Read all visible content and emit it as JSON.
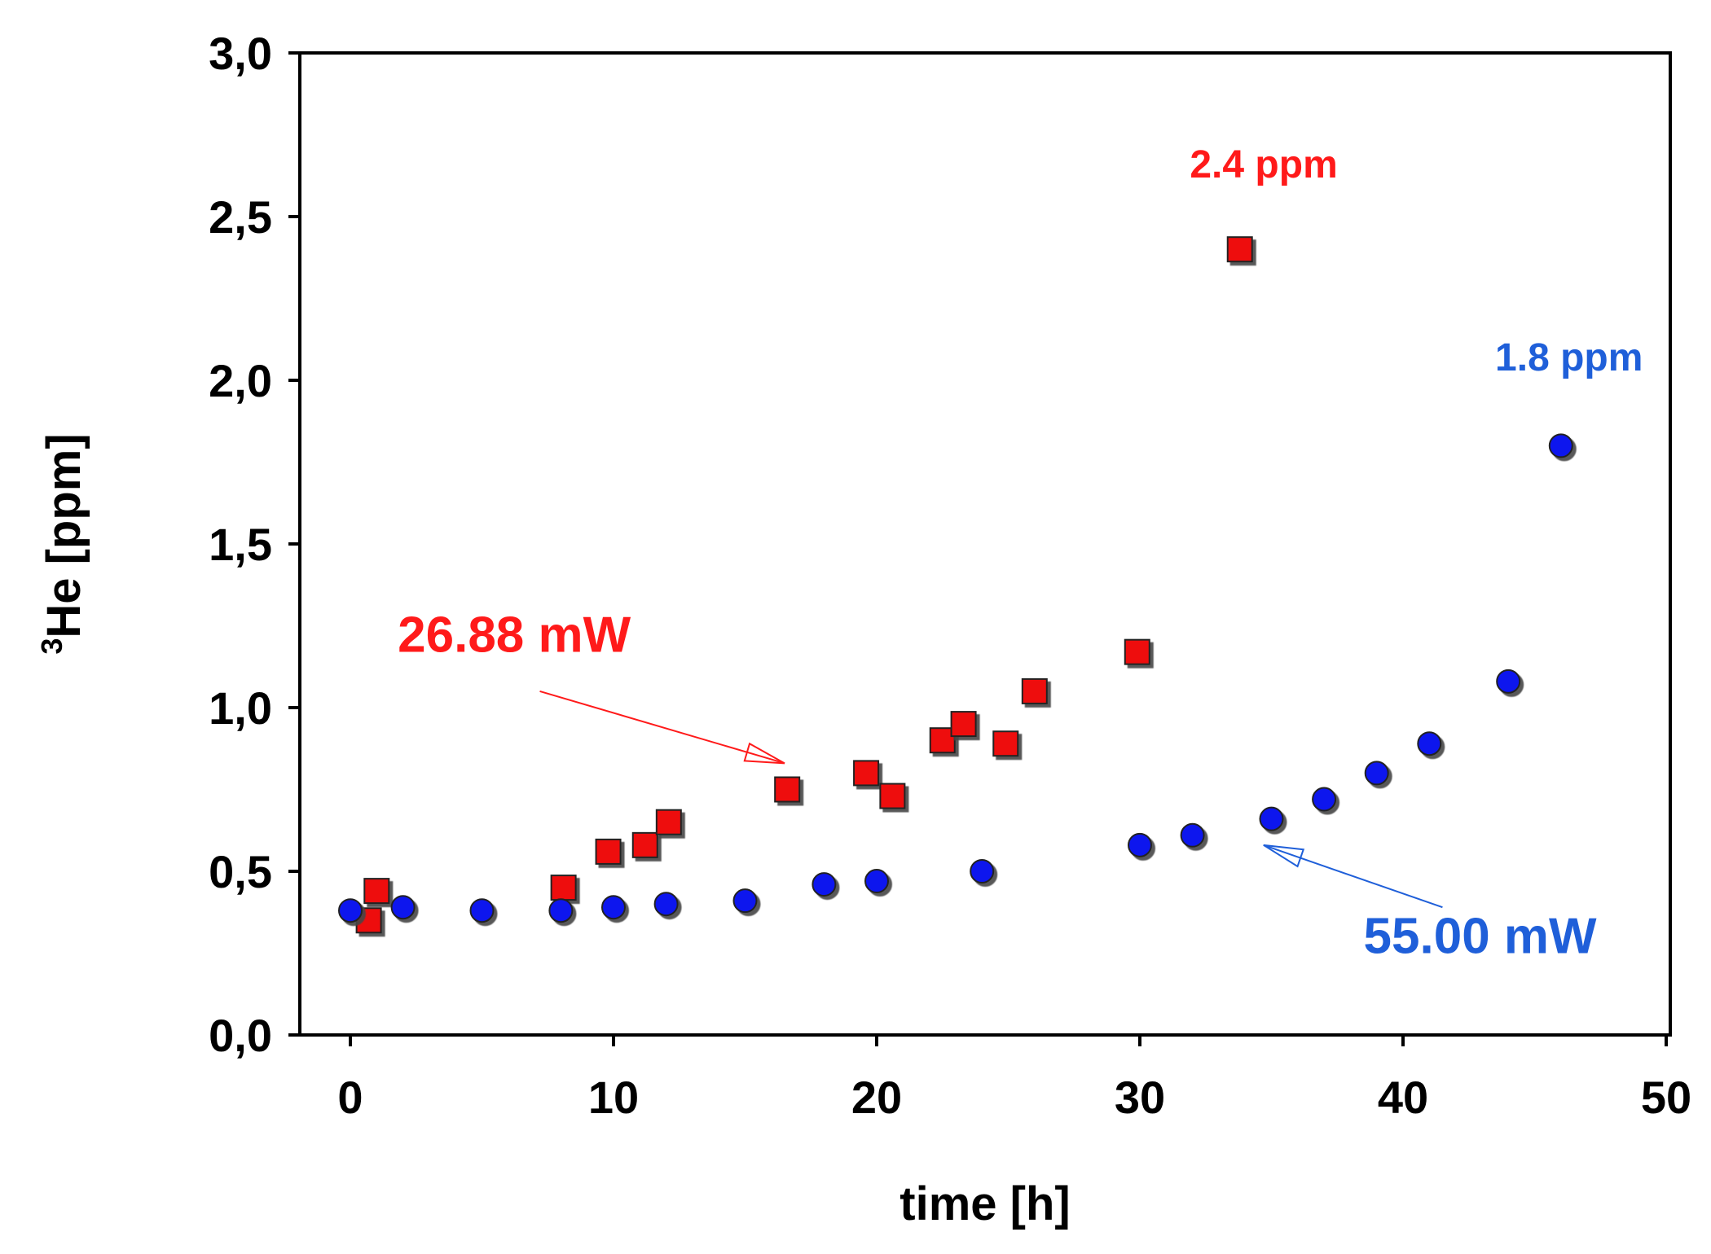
{
  "chart_data": {
    "type": "scatter",
    "title": "",
    "xlabel": "time [h]",
    "ylabel_superscript": "3",
    "ylabel_main": "He [ppm]",
    "xlim": [
      -2,
      50
    ],
    "ylim": [
      0,
      3.0
    ],
    "x_ticks": [
      0,
      10,
      20,
      30,
      40,
      50
    ],
    "x_tick_labels": [
      "0",
      "10",
      "20",
      "30",
      "40",
      "50"
    ],
    "y_ticks": [
      0,
      0.5,
      1.0,
      1.5,
      2.0,
      2.5,
      3.0
    ],
    "y_tick_labels": [
      "0,0",
      "0,5",
      "1,0",
      "1,5",
      "2,0",
      "2,5",
      "3,0"
    ],
    "grid": false,
    "series": [
      {
        "name": "26.88 mW",
        "marker": "square",
        "color": "#ee1111",
        "points": [
          [
            0.7,
            0.35
          ],
          [
            1.0,
            0.44
          ],
          [
            8.1,
            0.45
          ],
          [
            9.8,
            0.56
          ],
          [
            11.2,
            0.58
          ],
          [
            12.1,
            0.65
          ],
          [
            16.6,
            0.75
          ],
          [
            19.6,
            0.8
          ],
          [
            20.6,
            0.73
          ],
          [
            22.5,
            0.9
          ],
          [
            23.3,
            0.95
          ],
          [
            24.9,
            0.89
          ],
          [
            26.0,
            1.05
          ],
          [
            29.9,
            1.17
          ],
          [
            33.8,
            2.4
          ]
        ]
      },
      {
        "name": "55.00 mW",
        "marker": "circle",
        "color": "#0a14ee",
        "points": [
          [
            0,
            0.38
          ],
          [
            2,
            0.39
          ],
          [
            5,
            0.38
          ],
          [
            8,
            0.38
          ],
          [
            10,
            0.39
          ],
          [
            12,
            0.4
          ],
          [
            15,
            0.41
          ],
          [
            18,
            0.46
          ],
          [
            20,
            0.47
          ],
          [
            24,
            0.5
          ],
          [
            30,
            0.58
          ],
          [
            32,
            0.61
          ],
          [
            35,
            0.66
          ],
          [
            37,
            0.72
          ],
          [
            39,
            0.8
          ],
          [
            41,
            0.89
          ],
          [
            44,
            1.08
          ],
          [
            46,
            1.8
          ]
        ]
      }
    ],
    "annotations": [
      {
        "text": "26.88 mW",
        "color": "#ff1a1a",
        "anchor": [
          1.8,
          1.17
        ],
        "arrow_from": [
          7.2,
          1.05
        ],
        "arrow_to": [
          16.5,
          0.83
        ]
      },
      {
        "text": "55.00 mW",
        "color": "#1f5fd9",
        "anchor": [
          38.5,
          0.25
        ],
        "arrow_from": [
          41.5,
          0.39
        ],
        "arrow_to": [
          34.7,
          0.58
        ]
      },
      {
        "text": "2.4 ppm",
        "color": "#ff1a1a",
        "anchor": [
          31.9,
          2.62
        ]
      },
      {
        "text": "1.8 ppm",
        "color": "#1f5fd9",
        "anchor": [
          43.5,
          2.03
        ]
      }
    ]
  }
}
